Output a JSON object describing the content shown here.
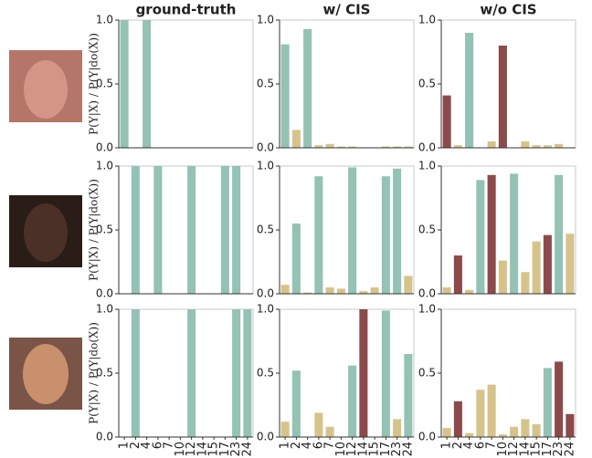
{
  "chart_data": [
    {
      "type": "bar",
      "title": "ground-truth",
      "ylabel": "P(Y|X) / P(Y|do(X))",
      "values": [
        1,
        0,
        1,
        0,
        0,
        0,
        0,
        0,
        0,
        0,
        0,
        0
      ],
      "bar_colors": [
        "#94c2b5",
        "#94c2b5",
        "#94c2b5",
        "#94c2b5",
        "#94c2b5",
        "#94c2b5",
        "#94c2b5",
        "#94c2b5",
        "#94c2b5",
        "#94c2b5",
        "#94c2b5",
        "#94c2b5"
      ],
      "ylim": [
        0,
        1
      ],
      "yticks": [
        {
          "value": 0,
          "label": "0.0"
        },
        0.5,
        {
          "value": 1,
          "label": "1.0"
        }
      ]
    },
    {
      "type": "bar",
      "title": "w/ CIS",
      "values": [
        0.81,
        0.14,
        0.93,
        0.02,
        0.03,
        0.01,
        0.01,
        0,
        0,
        0.01,
        0.01,
        0.01
      ],
      "bar_colors": [
        "#94c2b5",
        "#d6c38b",
        "#94c2b5",
        "#d6c38b",
        "#d6c38b",
        "#d6c38b",
        "#d6c38b",
        "#d6c38b",
        "#d6c38b",
        "#d6c38b",
        "#d6c38b",
        "#d6c38b"
      ],
      "ylim": [
        0,
        1
      ],
      "yticks": [
        {
          "value": 0,
          "label": "0.0"
        },
        0.5,
        {
          "value": 1,
          "label": "1.0"
        }
      ]
    },
    {
      "type": "bar",
      "title": "w/o CIS",
      "values": [
        0.41,
        0.02,
        0.9,
        0,
        0.05,
        0.8,
        0,
        0.05,
        0.02,
        0.02,
        0.03,
        0
      ],
      "bar_colors": [
        "#8c4a4a",
        "#d6c38b",
        "#94c2b5",
        "#d6c38b",
        "#d6c38b",
        "#8c4a4a",
        "#d6c38b",
        "#d6c38b",
        "#d6c38b",
        "#d6c38b",
        "#d6c38b",
        "#d6c38b"
      ],
      "ylim": [
        0,
        1
      ],
      "yticks": [
        {
          "value": 0,
          "label": "0.0"
        },
        0.5,
        {
          "value": 1,
          "label": "1.0"
        }
      ]
    },
    {
      "type": "bar",
      "ylabel": "P(Y|X) / P(Y|do(X))",
      "values": [
        0,
        1,
        0,
        1,
        0,
        0,
        1,
        0,
        0,
        1,
        1,
        0
      ],
      "bar_colors": [
        "#94c2b5",
        "#94c2b5",
        "#94c2b5",
        "#94c2b5",
        "#94c2b5",
        "#94c2b5",
        "#94c2b5",
        "#94c2b5",
        "#94c2b5",
        "#94c2b5",
        "#94c2b5",
        "#94c2b5"
      ],
      "ylim": [
        0,
        1
      ],
      "yticks": [
        {
          "value": 0,
          "label": "0.0"
        },
        0.5,
        {
          "value": 1,
          "label": "1.0"
        }
      ]
    },
    {
      "type": "bar",
      "values": [
        0.07,
        0.55,
        0.01,
        0.92,
        0.05,
        0.04,
        0.99,
        0.02,
        0.05,
        0.92,
        0.98,
        0.14
      ],
      "bar_colors": [
        "#d6c38b",
        "#94c2b5",
        "#d6c38b",
        "#94c2b5",
        "#d6c38b",
        "#d6c38b",
        "#94c2b5",
        "#d6c38b",
        "#d6c38b",
        "#94c2b5",
        "#94c2b5",
        "#d6c38b"
      ],
      "ylim": [
        0,
        1
      ],
      "yticks": [
        {
          "value": 0,
          "label": "0.0"
        },
        0.5,
        {
          "value": 1,
          "label": "1.0"
        }
      ]
    },
    {
      "type": "bar",
      "values": [
        0.05,
        0.3,
        0.03,
        0.89,
        0.93,
        0.26,
        0.94,
        0.17,
        0.41,
        0.46,
        0.93,
        0.47
      ],
      "bar_colors": [
        "#d6c38b",
        "#8c4a4a",
        "#d6c38b",
        "#94c2b5",
        "#8c4a4a",
        "#d6c38b",
        "#94c2b5",
        "#d6c38b",
        "#d6c38b",
        "#8c4a4a",
        "#94c2b5",
        "#d6c38b"
      ],
      "ylim": [
        0,
        1
      ],
      "yticks": [
        {
          "value": 0,
          "label": "0.0"
        },
        0.5,
        {
          "value": 1,
          "label": "1.0"
        }
      ]
    },
    {
      "type": "bar",
      "ylabel": "P(Y|X) / P(Y|do(X))",
      "categories": [
        "1",
        "2",
        "4",
        "6",
        "7",
        "10",
        "12",
        "14",
        "15",
        "17",
        "23",
        "24"
      ],
      "values": [
        0,
        1,
        0,
        0,
        0,
        0,
        1,
        0,
        0,
        0,
        1,
        1
      ],
      "bar_colors": [
        "#94c2b5",
        "#94c2b5",
        "#94c2b5",
        "#94c2b5",
        "#94c2b5",
        "#94c2b5",
        "#94c2b5",
        "#94c2b5",
        "#94c2b5",
        "#94c2b5",
        "#94c2b5",
        "#94c2b5"
      ],
      "ylim": [
        0,
        1
      ],
      "yticks": [
        {
          "value": 0,
          "label": "0.0"
        },
        0.5,
        {
          "value": 1,
          "label": "1.0"
        }
      ]
    },
    {
      "type": "bar",
      "categories": [
        "1",
        "2",
        "4",
        "6",
        "7",
        "10",
        "12",
        "14",
        "15",
        "17",
        "23",
        "24"
      ],
      "values": [
        0.12,
        0.52,
        0,
        0.19,
        0.08,
        0,
        0.56,
        1,
        0,
        0.99,
        0.14,
        0.65
      ],
      "bar_colors": [
        "#d6c38b",
        "#94c2b5",
        "#d6c38b",
        "#d6c38b",
        "#d6c38b",
        "#d6c38b",
        "#94c2b5",
        "#8c4a4a",
        "#d6c38b",
        "#94c2b5",
        "#d6c38b",
        "#94c2b5"
      ],
      "ylim": [
        0,
        1
      ],
      "yticks": [
        {
          "value": 0,
          "label": "0.0"
        },
        0.5,
        {
          "value": 1,
          "label": "1.0"
        }
      ]
    },
    {
      "type": "bar",
      "categories": [
        "1",
        "2",
        "4",
        "6",
        "7",
        "10",
        "12",
        "14",
        "15",
        "17",
        "23",
        "24"
      ],
      "values": [
        0.07,
        0.28,
        0.03,
        0.37,
        0.41,
        0.02,
        0.08,
        0.14,
        0.1,
        0.54,
        0.59,
        0.18
      ],
      "bar_colors": [
        "#d6c38b",
        "#8c4a4a",
        "#d6c38b",
        "#d6c38b",
        "#d6c38b",
        "#d6c38b",
        "#d6c38b",
        "#d6c38b",
        "#d6c38b",
        "#94c2b5",
        "#8c4a4a",
        "#8c4a4a"
      ],
      "ylim": [
        0,
        1
      ],
      "yticks": [
        {
          "value": 0,
          "label": "0.0"
        },
        0.5,
        {
          "value": 1,
          "label": "1.0"
        }
      ]
    }
  ]
}
